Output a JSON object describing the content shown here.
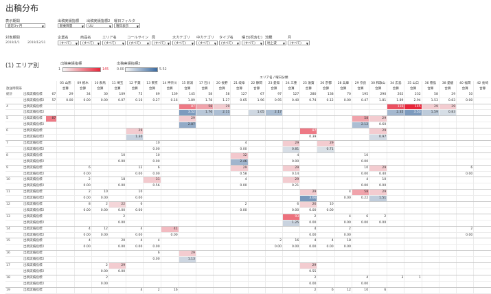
{
  "title": "出稿分布",
  "filters": {
    "period": {
      "label": "表示期間",
      "value": "直近3ヶ月"
    },
    "metric1": {
      "label": "出稿実績指標",
      "value": "駅乗降量"
    },
    "metric2": {
      "label": "出稿実績指標2",
      "value": "UU"
    },
    "weekday": {
      "label": "曜日フィルタ",
      "value": "曜日表示"
    },
    "target_period": {
      "label": "対象期間",
      "start": "2019/1/1",
      "end": "2019/12/31"
    },
    "dims": [
      {
        "label": "企業名",
        "value": "(すべて)"
      },
      {
        "label": "商品名",
        "value": "(すべて)"
      },
      {
        "label": "エリア名",
        "value": "(すべて)"
      },
      {
        "label": "コールサイン",
        "value": "(すべて)"
      },
      {
        "label": "局",
        "value": "(すべて)"
      },
      {
        "label": "大カテゴリ",
        "value": "(すべて)"
      },
      {
        "label": "中カテゴリ",
        "value": "(すべて)"
      },
      {
        "label": "タイプ名",
        "value": "(すべて)"
      },
      {
        "label": "曜日(祝含む)",
        "value": "(すべて)"
      },
      {
        "label": "流種",
        "value": "地上波"
      },
      {
        "label": "月",
        "value": "(すべて)"
      }
    ]
  },
  "section_title": "(1) エリア別",
  "legend": {
    "metric1": {
      "label": "出稿実績指標",
      "min": "1",
      "max": "145",
      "color": "#e8263a"
    },
    "metric2": {
      "label": "出稿実績指標2",
      "min": "0.00",
      "max": "5.52",
      "color": "#3b6aa0"
    }
  },
  "grid": {
    "header_title": "エリア名 / 曜日分類",
    "row_header_label": "放送時間帯",
    "total_label": "総計",
    "measure_labels": [
      "出稿実績指標",
      "出稿実績指標2"
    ],
    "measure_short": [
      "出稿実績指標",
      "出稿実績指標"
    ],
    "sub_label": "合算",
    "areas": [
      "05 山形",
      "09 栃木",
      "10 群馬",
      "11 埼玉",
      "12 千葉",
      "13 東京",
      "14 神奈川",
      "15 新潟",
      "17 石川",
      "20 長野",
      "21 岐阜",
      "22 静岡",
      "23 愛知",
      "24 三重",
      "25 滋賀",
      "26 京都",
      "28 兵庫",
      "29 奈良",
      "30 和歌山",
      "34 広島",
      "35 山口",
      "36 徳島",
      "38 愛媛",
      "40 福岡",
      "42 長崎"
    ],
    "total_col_values": [
      "67",
      "57"
    ],
    "total_row": [
      [
        "29",
        "34",
        "30",
        "109",
        "75",
        "69",
        "139",
        "145",
        "58",
        "58",
        "127",
        "67",
        "97",
        "127",
        "280",
        "138",
        "70",
        "195",
        "290",
        "262",
        "232",
        "58",
        "29",
        "10",
        ""
      ],
      [
        "0.00",
        "0.00",
        "0.00",
        "0.07",
        "0.16",
        "0.27",
        "0.16",
        "1.89",
        "1.78",
        "1.27",
        "0.65",
        "1.96",
        "0.95",
        "0.40",
        "0.74",
        "0.12",
        "0.00",
        "0.47",
        "1.81",
        "1.89",
        "2.94",
        "1.53",
        "0.83",
        "0.00",
        ""
      ]
    ],
    "row_groups": [
      {
        "label": "4",
        "v1": [
          "",
          "",
          "",
          "",
          "",
          "",
          "",
          "87",
          "58",
          "29",
          "",
          "",
          "",
          "",
          "",
          "",
          "",
          "",
          "",
          "116",
          "145",
          "29",
          "29",
          "",
          ""
        ],
        "v2": [
          "",
          "",
          "",
          "",
          "",
          "",
          "",
          "3.52",
          "1.76",
          "2.11",
          "",
          "1.05",
          "2.17",
          "",
          "",
          "",
          "",
          "",
          "",
          "2.35",
          "3.53",
          "1.59",
          "0.83",
          "",
          ""
        ],
        "tv1": "",
        "tv2": ""
      },
      {
        "label": "5",
        "v1": [
          "",
          "",
          "",
          "",
          "",
          "",
          "",
          "29",
          "",
          "",
          "",
          "",
          "",
          "",
          "",
          "",
          "",
          "58",
          "29",
          "",
          "",
          "",
          "",
          "",
          ""
        ],
        "v2": [
          "",
          "",
          "",
          "",
          "",
          "",
          "",
          "2.87",
          "",
          "",
          "",
          "",
          "",
          "",
          "",
          "",
          "",
          "2.12",
          "0.60",
          "",
          "",
          "",
          "",
          "",
          ""
        ],
        "tv1": "87",
        "tv2": ""
      },
      {
        "label": "6",
        "v1": [
          "",
          "",
          "",
          "",
          "29",
          "",
          "",
          "",
          "",
          "",
          "",
          "",
          "",
          "",
          "87",
          "",
          "",
          "",
          "29",
          "",
          "",
          "",
          "",
          "",
          ""
        ],
        "v2": [
          "",
          "",
          "",
          "",
          "1.30",
          "",
          "",
          "",
          "",
          "",
          "",
          "",
          "",
          "",
          "0.39",
          "",
          "",
          "",
          "0.97",
          "",
          "",
          "",
          "",
          "",
          ""
        ],
        "tv1": "",
        "tv2": ""
      },
      {
        "label": "7",
        "v1": [
          "",
          "",
          "",
          "",
          "",
          "10",
          "",
          "",
          "",
          "",
          "4",
          "",
          "",
          "29",
          "",
          "29",
          "",
          "",
          "",
          "",
          "",
          "",
          "",
          "",
          ""
        ],
        "v2": [
          "",
          "",
          "",
          "",
          "",
          "0.00",
          "",
          "",
          "",
          "",
          "0.00",
          "",
          "",
          "0.81",
          "",
          "0.71",
          "",
          "",
          "",
          "",
          "",
          "",
          "",
          "",
          ""
        ],
        "tv1": "",
        "tv2": ""
      },
      {
        "label": "8",
        "v1": [
          "",
          "",
          "",
          "10",
          "",
          "10",
          "",
          "",
          "",
          "",
          "32",
          "",
          "",
          "4",
          "",
          "",
          "",
          "10",
          "",
          "",
          "",
          "",
          "",
          "",
          ""
        ],
        "v2": [
          "",
          "",
          "",
          "0.00",
          "",
          "0.00",
          "",
          "",
          "",
          "",
          "2.46",
          "",
          "",
          "0.00",
          "",
          "",
          "",
          "0.00",
          "",
          "",
          "",
          "",
          "",
          "",
          ""
        ],
        "tv1": "",
        "tv2": ""
      },
      {
        "label": "9",
        "v1": [
          "",
          "6",
          "",
          "",
          "12",
          "6",
          "",
          "",
          "",
          "",
          "29",
          "",
          "",
          "29",
          "",
          "",
          "",
          "10",
          "29",
          "",
          "",
          "",
          "",
          "6",
          ""
        ],
        "v2": [
          "",
          "0.00",
          "",
          "",
          "0.00",
          "0.00",
          "",
          "",
          "",
          "",
          "0.58",
          "",
          "",
          "0.14",
          "",
          "",
          "",
          "0.00",
          "0.40",
          "",
          "",
          "",
          "",
          "0.00",
          ""
        ],
        "tv1": "",
        "tv2": ""
      },
      {
        "label": "10",
        "v1": [
          "",
          "2",
          "",
          "18",
          "",
          "31",
          "",
          "",
          "",
          "",
          "4",
          "",
          "",
          "29",
          "",
          "",
          "",
          "4",
          "10",
          "",
          "",
          "",
          "",
          "",
          ""
        ],
        "v2": [
          "",
          "0.00",
          "",
          "0.00",
          "",
          "0.56",
          "",
          "",
          "",
          "",
          "0.00",
          "",
          "",
          "0.21",
          "",
          "",
          "",
          "0.00",
          "0.00",
          "",
          "",
          "",
          "",
          "",
          ""
        ],
        "tv1": "",
        "tv2": ""
      },
      {
        "label": "11",
        "v1": [
          "",
          "2",
          "10",
          "",
          "10",
          "",
          "",
          "",
          "",
          "",
          "",
          "",
          "",
          "",
          "29",
          "",
          "4",
          "58",
          "29",
          "",
          "",
          "",
          "",
          "",
          ""
        ],
        "v2": [
          "",
          "0.00",
          "0.00",
          "",
          "0.00",
          "",
          "",
          "",
          "",
          "",
          "",
          "",
          "",
          "",
          "3.66",
          "",
          "0.00",
          "0.22",
          "1.51",
          "",
          "",
          "",
          "",
          "",
          ""
        ],
        "tv1": "",
        "tv2": ""
      },
      {
        "label": "12",
        "v1": [
          "",
          "8",
          "2",
          "22",
          "6",
          "",
          "",
          "",
          "",
          "",
          "2",
          "",
          "",
          "6",
          "26",
          "10",
          "",
          "",
          "",
          "",
          "",
          "",
          "",
          "",
          ""
        ],
        "v2": [
          "",
          "0.00",
          "0.00",
          "0.00",
          "0.00",
          "",
          "",
          "",
          "",
          "",
          "0.00",
          "",
          "",
          "0.00",
          "0.00",
          "0.00",
          "",
          "",
          "",
          "",
          "",
          "",
          "",
          "",
          ""
        ],
        "tv1": "",
        "tv2": ""
      },
      {
        "label": "13",
        "v1": [
          "",
          "",
          "",
          "2",
          "",
          "",
          "",
          "",
          "",
          "",
          "",
          "",
          "",
          "93",
          "2",
          "",
          "4",
          "6",
          "2",
          "",
          "",
          "",
          "",
          "",
          ""
        ],
        "v2": [
          "",
          "",
          "",
          "0.00",
          "",
          "",
          "",
          "",
          "",
          "",
          "",
          "",
          "",
          "1.25",
          "0.00",
          "",
          "0.00",
          "0.00",
          "0.00",
          "",
          "",
          "",
          "",
          "",
          ""
        ],
        "tv1": "",
        "tv2": ""
      },
      {
        "label": "14",
        "v1": [
          "",
          "4",
          "12",
          "",
          "4",
          "",
          "41",
          "",
          "",
          "",
          "",
          "",
          "",
          "",
          "4",
          "",
          "2",
          "",
          "",
          "",
          "",
          "",
          "",
          "2",
          ""
        ],
        "v2": [
          "",
          "0.00",
          "0.00",
          "",
          "0.00",
          "",
          "0.00",
          "",
          "",
          "",
          "",
          "",
          "",
          "",
          "0.00",
          "",
          "0.00",
          "",
          "",
          "",
          "",
          "",
          "",
          "0.00",
          ""
        ],
        "tv1": "",
        "tv2": ""
      },
      {
        "label": "15",
        "v1": [
          "",
          "4",
          "",
          "20",
          "4",
          "4",
          "",
          "",
          "",
          "",
          "",
          "",
          "2",
          "16",
          "4",
          "4",
          "18",
          "",
          "",
          "",
          "",
          "",
          "",
          "",
          ""
        ],
        "v2": [
          "",
          "0.00",
          "",
          "0.00",
          "0.00",
          "0.00",
          "",
          "",
          "",
          "",
          "",
          "",
          "0.00",
          "0.00",
          "0.00",
          "0.00",
          "0.00",
          "",
          "",
          "",
          "",
          "",
          "",
          "",
          ""
        ],
        "tv1": "",
        "tv2": ""
      },
      {
        "label": "16",
        "v1": [
          "",
          "",
          "",
          "",
          "",
          "6",
          "",
          "29",
          "",
          "",
          "",
          "",
          "",
          "",
          "",
          "",
          "",
          "",
          "",
          "",
          "",
          "",
          "",
          "",
          ""
        ],
        "v2": [
          "",
          "",
          "",
          "",
          "",
          "0.00",
          "",
          "1.13",
          "",
          "",
          "",
          "",
          "",
          "",
          "",
          "",
          "",
          "",
          "",
          "",
          "",
          "",
          "",
          "",
          ""
        ],
        "tv1": "",
        "tv2": ""
      },
      {
        "label": "17",
        "v1": [
          "",
          "",
          "2",
          "29",
          "",
          "",
          "",
          "",
          "",
          "",
          "",
          "",
          "",
          "",
          "29",
          "",
          "",
          "",
          "",
          "",
          "",
          "",
          "",
          "",
          ""
        ],
        "v2": [
          "",
          "",
          "0.00",
          "0.00",
          "",
          "",
          "",
          "",
          "",
          "",
          "",
          "",
          "",
          "",
          "0.55",
          "",
          "",
          "",
          "",
          "",
          "",
          "",
          "",
          "",
          ""
        ],
        "tv1": "",
        "tv2": ""
      },
      {
        "label": "18",
        "v1": [
          "",
          "",
          "2",
          "",
          "",
          "",
          "",
          "",
          "",
          "",
          "",
          "",
          "",
          "",
          "2",
          "",
          "",
          "4",
          "",
          "3",
          "1",
          "",
          "",
          "",
          ""
        ],
        "v2": [
          "",
          "",
          "0.00",
          "",
          "",
          "",
          "",
          "",
          "",
          "",
          "",
          "",
          "",
          "",
          "0.00",
          "",
          "",
          "0.00",
          "",
          "",
          "",
          "",
          "",
          "",
          ""
        ],
        "tv1": "",
        "tv2": ""
      },
      {
        "label": "19",
        "v1": [
          "",
          "",
          "",
          "",
          "4",
          "2",
          "16",
          "",
          "",
          "",
          "",
          "",
          "",
          "",
          "2",
          "6",
          "12",
          "10",
          "6",
          "",
          "",
          "",
          "",
          "",
          ""
        ],
        "v2": [
          "",
          "",
          "",
          "",
          "0.00",
          "0.00",
          "0.00",
          "",
          "",
          "",
          "",
          "",
          "",
          "",
          "0.00",
          "0.00",
          "0.00",
          "0.00",
          "0.00",
          "",
          "",
          "",
          "",
          "",
          ""
        ],
        "tv1": "",
        "tv2": ""
      }
    ]
  }
}
